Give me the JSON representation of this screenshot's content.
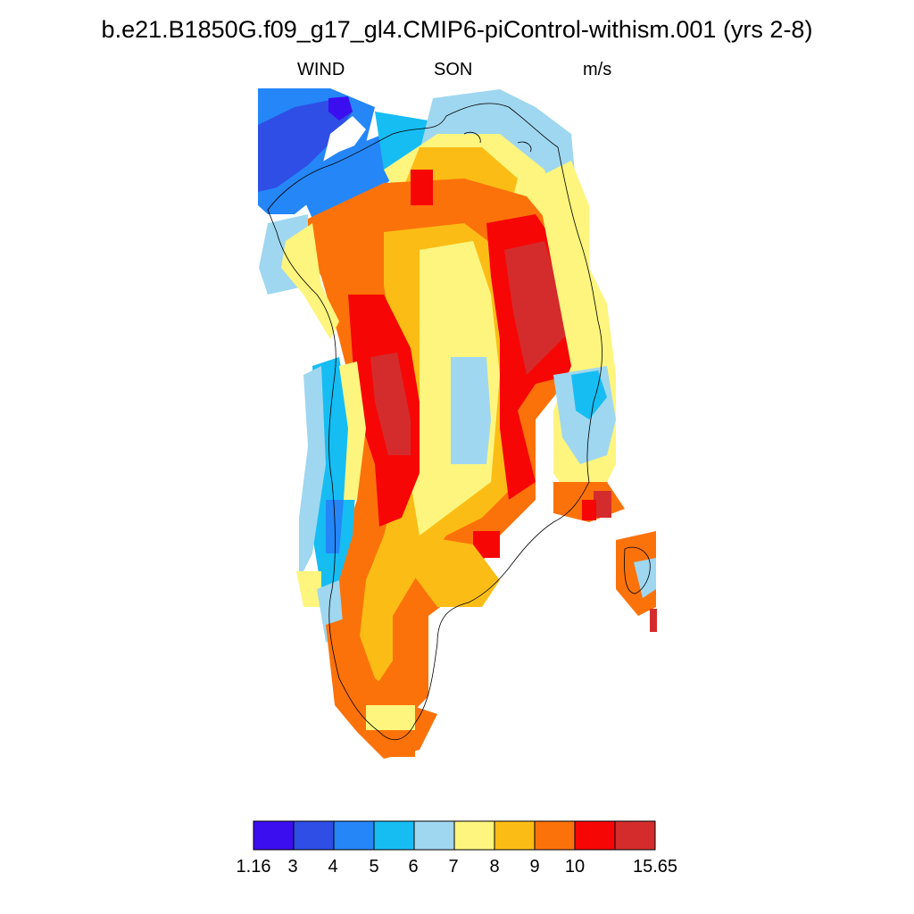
{
  "title": "b.e21.B1850G.f09_g17_gl4.CMIP6-piControl-withism.001 (yrs 2-8)",
  "subtitle_left": "WIND",
  "subtitle_center": "SON",
  "subtitle_right": "m/s",
  "colorbar": {
    "colors": [
      "#3b0ef0",
      "#2e4ee6",
      "#2586f8",
      "#16bdf3",
      "#9fd7f0",
      "#fdf57e",
      "#fbbd15",
      "#fc720a",
      "#f70606",
      "#d42c2c"
    ],
    "labels": [
      "1.16",
      "3",
      "4",
      "5",
      "6",
      "7",
      "8",
      "9",
      "10",
      "15.65"
    ]
  }
}
